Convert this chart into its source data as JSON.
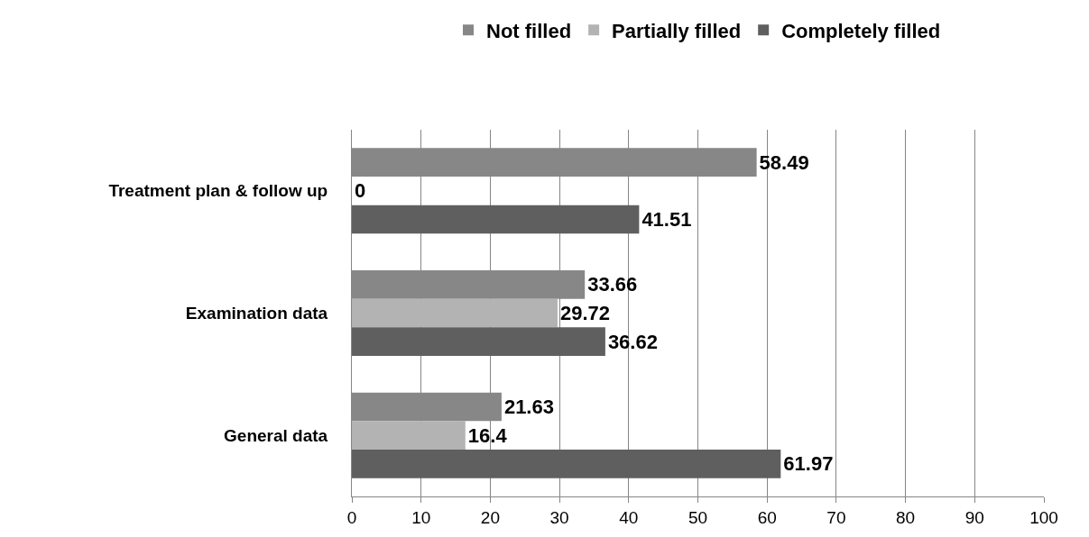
{
  "chart_data": {
    "type": "bar",
    "orientation": "horizontal",
    "categories": [
      "Treatment plan & follow up",
      "Examination data",
      "General data"
    ],
    "series": [
      {
        "name": "Not filled",
        "color": "#878787",
        "values": [
          58.49,
          33.66,
          21.63
        ]
      },
      {
        "name": "Partially filled",
        "color": "#b3b3b3",
        "values": [
          0,
          29.72,
          16.4
        ]
      },
      {
        "name": "Completely filled",
        "color": "#5f5f5f",
        "values": [
          41.51,
          36.62,
          61.97
        ]
      }
    ],
    "xlim": [
      0,
      100
    ],
    "xticks": [
      0,
      10,
      20,
      30,
      40,
      50,
      60,
      70,
      80,
      90,
      100
    ],
    "grid": "x",
    "legend": "top",
    "data_labels": true
  }
}
